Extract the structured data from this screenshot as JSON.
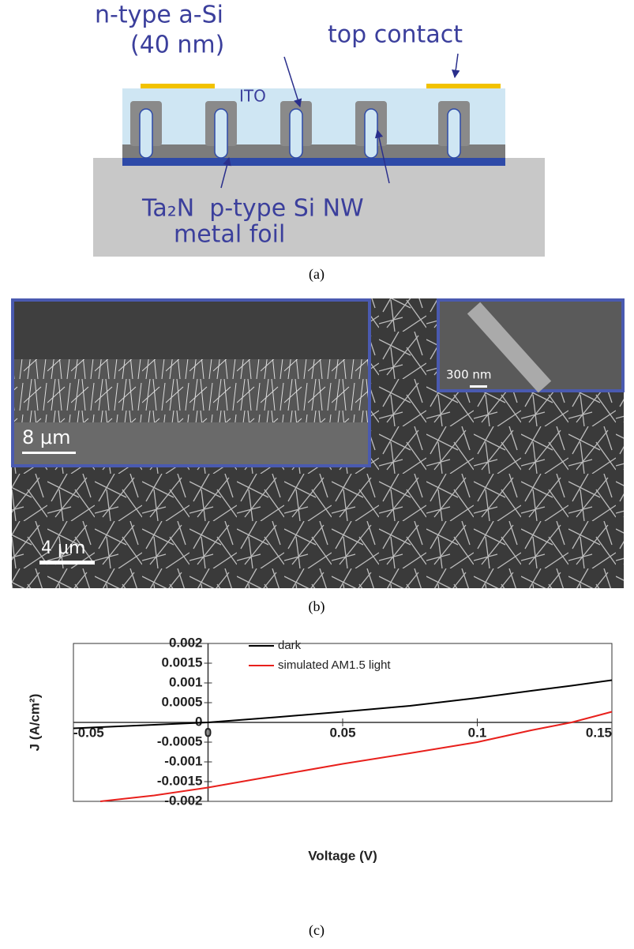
{
  "panel_a": {
    "n_type": "n-type a-Si",
    "thickness": "(40 nm)",
    "top_contact": "top contact",
    "ito": "ITO",
    "layers": "Ta₂N  p-type Si NW",
    "foil": "metal foil",
    "caption": "(a)"
  },
  "panel_b": {
    "inset_scale": "8 μm",
    "inset2_scale": "300 nm",
    "main_scale": "4 μm",
    "caption": "(b)"
  },
  "chart_data": {
    "type": "line",
    "x_label": "Voltage (V)",
    "y_label": "J (A/cm²)",
    "caption": "(c)",
    "x": [
      -0.05,
      -0.04,
      -0.02,
      0,
      0.025,
      0.05,
      0.075,
      0.1,
      0.12,
      0.135,
      0.15
    ],
    "series": [
      {
        "name": "dark",
        "color": "#000000",
        "values": [
          -0.00015,
          -0.00012,
          -6e-05,
          0,
          0.00013,
          0.00027,
          0.00042,
          0.00062,
          0.0008,
          0.00093,
          0.00107
        ]
      },
      {
        "name": "simulated AM1.5 light",
        "color": "#e8201c",
        "values": [
          null,
          -0.002,
          -0.00185,
          -0.00165,
          -0.00135,
          -0.00105,
          -0.00078,
          -0.0005,
          -0.0002,
          0,
          0.00027
        ]
      }
    ],
    "xlim": [
      -0.05,
      0.15
    ],
    "ylim": [
      -0.002,
      0.002
    ],
    "xticks": [
      -0.05,
      0,
      0.05,
      0.1,
      0.15
    ],
    "yticks": [
      0.002,
      0.0015,
      0.001,
      0.0005,
      0,
      -0.0005,
      -0.001,
      -0.0015,
      -0.002
    ]
  }
}
